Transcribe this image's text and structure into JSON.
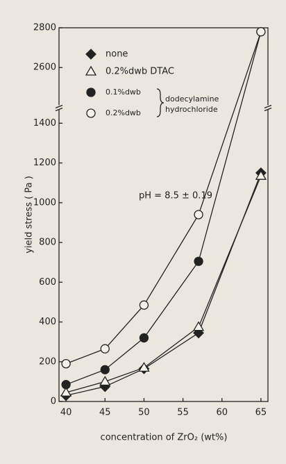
{
  "chart_data": {
    "type": "line",
    "x_label": "concentration of ZrO₂ (wt%)",
    "y_label": "yield stress ( Pa )",
    "annotation": "pH = 8.5 ± 0.19",
    "legend_group_label": [
      "dodecylamine",
      "hydrochloride"
    ],
    "x": [
      40,
      45,
      50,
      57,
      65
    ],
    "series": [
      {
        "name": "none",
        "color": "#222222",
        "marker": "diamond",
        "filled": true,
        "values": [
          30,
          75,
          165,
          345,
          1150
        ]
      },
      {
        "name": "0.2%dwb DTAC",
        "color": "#222222",
        "marker": "triangle",
        "filled": false,
        "values": [
          45,
          100,
          170,
          375,
          1135
        ]
      },
      {
        "name": "0.1%dwb",
        "color": "#222222",
        "marker": "circle",
        "filled": true,
        "values": [
          85,
          160,
          320,
          705,
          2780
        ]
      },
      {
        "name": "0.2%dwb",
        "color": "#222222",
        "marker": "circle",
        "filled": false,
        "values": [
          190,
          265,
          485,
          940,
          2780
        ]
      }
    ],
    "xlim": [
      39.1,
      65.9
    ],
    "xticks": [
      40,
      45,
      50,
      55,
      60,
      65
    ],
    "ylim": [
      0,
      2800
    ],
    "ybreak": [
      1480,
      2400
    ],
    "yticks": [
      0,
      200,
      400,
      600,
      800,
      1000,
      1200,
      1400,
      2600,
      2800
    ]
  }
}
